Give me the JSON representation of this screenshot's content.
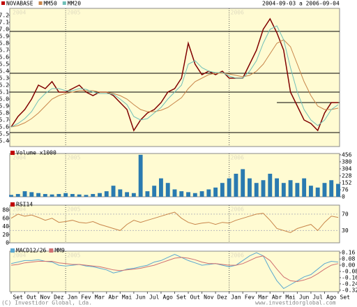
{
  "header": {
    "legend": [
      {
        "name": "NOVABASE",
        "color": "#c00000"
      },
      {
        "name": "MM50",
        "color": "#c8854a"
      },
      {
        "name": "MM20",
        "color": "#70c0b8"
      }
    ],
    "title": "2004-09-03 a 2006-09-04",
    "year_labels": [
      "2004",
      "2005",
      "2006"
    ]
  },
  "chart_data": [
    {
      "type": "line",
      "xlim": [
        0,
        24
      ],
      "x": [
        0,
        0.5,
        1,
        1.5,
        2,
        2.5,
        3,
        3.5,
        4,
        4.5,
        5,
        5.5,
        6,
        6.5,
        7,
        7.5,
        8,
        8.5,
        9,
        9.5,
        10,
        10.5,
        11,
        11.5,
        12,
        12.5,
        13,
        13.5,
        14,
        14.5,
        15,
        15.5,
        16,
        16.5,
        17,
        17.5,
        18,
        18.5,
        19,
        19.5,
        20,
        20.5,
        21,
        21.5,
        22,
        22.5,
        23,
        23.5,
        24
      ],
      "ylim": [
        5.32,
        7.3
      ],
      "yticks": [
        5.4,
        5.5,
        5.6,
        5.7,
        5.8,
        5.9,
        {
          "value": 6,
          "label": "6.0"
        },
        6.1,
        6.2,
        6.3,
        6.4,
        6.5,
        6.6,
        6.7,
        6.8,
        6.9,
        {
          "value": 7,
          "label": "7.0"
        },
        7.1,
        7.2
      ],
      "hlines": [
        6.97,
        6.37,
        6.1,
        5.52
      ],
      "partial_hline": {
        "value": 5.95,
        "from": 19.5
      },
      "series": [
        {
          "name": "NOVABASE",
          "color": "#800000",
          "values": [
            5.6,
            5.75,
            5.85,
            6.0,
            6.2,
            6.15,
            6.25,
            6.1,
            6.1,
            6.15,
            6.2,
            6.1,
            6.05,
            6.1,
            6.1,
            6.05,
            5.95,
            5.85,
            5.55,
            5.7,
            5.8,
            5.85,
            5.95,
            6.1,
            6.15,
            6.3,
            6.8,
            6.5,
            6.35,
            6.4,
            6.35,
            6.4,
            6.3,
            6.3,
            6.3,
            6.5,
            6.7,
            7.0,
            7.15,
            6.95,
            6.7,
            6.1,
            5.9,
            5.7,
            5.65,
            5.55,
            5.8,
            5.95,
            5.95
          ]
        },
        {
          "name": "MM50",
          "color": "#c8854a",
          "values": [
            5.6,
            5.62,
            5.66,
            5.72,
            5.8,
            5.9,
            6.0,
            6.05,
            6.08,
            6.1,
            6.12,
            6.12,
            6.12,
            6.1,
            6.1,
            6.08,
            6.05,
            6.0,
            5.92,
            5.85,
            5.82,
            5.82,
            5.84,
            5.88,
            5.95,
            6.02,
            6.15,
            6.25,
            6.3,
            6.35,
            6.37,
            6.37,
            6.36,
            6.34,
            6.32,
            6.34,
            6.4,
            6.5,
            6.65,
            6.8,
            6.85,
            6.75,
            6.5,
            6.25,
            6.05,
            5.9,
            5.85,
            5.85,
            5.87
          ]
        },
        {
          "name": "MM20",
          "color": "#70c0b8",
          "values": [
            5.6,
            5.65,
            5.72,
            5.82,
            5.98,
            6.08,
            6.15,
            6.15,
            6.12,
            6.12,
            6.15,
            6.14,
            6.1,
            6.08,
            6.08,
            6.07,
            6.0,
            5.92,
            5.75,
            5.7,
            5.72,
            5.8,
            5.88,
            6.0,
            6.1,
            6.2,
            6.5,
            6.55,
            6.45,
            6.4,
            6.38,
            6.38,
            6.33,
            6.3,
            6.3,
            6.4,
            6.55,
            6.8,
            7.0,
            7.05,
            6.85,
            6.45,
            6.1,
            5.85,
            5.7,
            5.62,
            5.7,
            5.85,
            5.92
          ]
        }
      ]
    },
    {
      "type": "bar",
      "title": "Volume x1000",
      "xlim": [
        0,
        24
      ],
      "x": [
        0,
        0.5,
        1,
        1.5,
        2,
        2.5,
        3,
        3.5,
        4,
        4.5,
        5,
        5.5,
        6,
        6.5,
        7,
        7.5,
        8,
        8.5,
        9,
        9.5,
        10,
        10.5,
        11,
        11.5,
        12,
        12.5,
        13,
        13.5,
        14,
        14.5,
        15,
        15.5,
        16,
        16.5,
        17,
        17.5,
        18,
        18.5,
        19,
        19.5,
        20,
        20.5,
        21,
        21.5,
        22,
        22.5,
        23,
        23.5,
        24
      ],
      "ylim": [
        0,
        470
      ],
      "yticks": [
        0,
        76,
        152,
        228,
        304,
        380,
        456
      ],
      "ytick_side": "right",
      "color": "#2a7ab0",
      "values": [
        20,
        30,
        60,
        50,
        40,
        30,
        25,
        30,
        40,
        30,
        25,
        20,
        30,
        40,
        60,
        120,
        80,
        50,
        40,
        456,
        60,
        120,
        200,
        150,
        80,
        60,
        50,
        40,
        60,
        80,
        100,
        150,
        200,
        250,
        300,
        200,
        150,
        180,
        250,
        200,
        150,
        180,
        150,
        200,
        120,
        100,
        150,
        180,
        140
      ]
    },
    {
      "type": "line",
      "title": "RSI14",
      "xlim": [
        0,
        24
      ],
      "x": [
        0,
        0.5,
        1,
        1.5,
        2,
        2.5,
        3,
        3.5,
        4,
        4.5,
        5,
        5.5,
        6,
        6.5,
        7,
        7.5,
        8,
        8.5,
        9,
        9.5,
        10,
        10.5,
        11,
        11.5,
        12,
        12.5,
        13,
        13.5,
        14,
        14.5,
        15,
        15.5,
        16,
        16.5,
        17,
        17.5,
        18,
        18.5,
        19,
        19.5,
        20,
        20.5,
        21,
        21.5,
        22,
        22.5,
        23,
        23.5,
        24
      ],
      "ylim": [
        0,
        92
      ],
      "yticks": [
        0,
        20,
        40,
        60,
        80
      ],
      "y2ticks": [
        30,
        70
      ],
      "series": [
        {
          "name": "RSI14",
          "color": "#c8854a",
          "values": [
            60,
            70,
            65,
            68,
            62,
            55,
            60,
            50,
            52,
            55,
            50,
            48,
            52,
            45,
            40,
            35,
            30,
            45,
            55,
            50,
            55,
            60,
            65,
            70,
            75,
            60,
            50,
            45,
            48,
            50,
            45,
            50,
            48,
            55,
            60,
            65,
            70,
            72,
            55,
            35,
            30,
            25,
            35,
            40,
            45,
            30,
            50,
            65,
            62
          ]
        }
      ]
    },
    {
      "type": "line",
      "xlim": [
        0,
        24
      ],
      "x": [
        0,
        0.5,
        1,
        1.5,
        2,
        2.5,
        3,
        3.5,
        4,
        4.5,
        5,
        5.5,
        6,
        6.5,
        7,
        7.5,
        8,
        8.5,
        9,
        9.5,
        10,
        10.5,
        11,
        11.5,
        12,
        12.5,
        13,
        13.5,
        14,
        14.5,
        15,
        15.5,
        16,
        16.5,
        17,
        17.5,
        18,
        18.5,
        19,
        19.5,
        20,
        20.5,
        21,
        21.5,
        22,
        22.5,
        23,
        23.5,
        24
      ],
      "ylim": [
        -0.34,
        0.18
      ],
      "yticks": [
        0.16,
        0.08,
        {
          "value": 0,
          "label": "0.00"
        },
        -0.08,
        -0.16,
        -0.24,
        -0.32
      ],
      "ytick_side": "right",
      "series": [
        {
          "name": "MACD12/26",
          "color": "#5aa8d0",
          "values": [
            0.02,
            0.04,
            0.06,
            0.06,
            0.07,
            0.05,
            0.04,
            0.0,
            -0.01,
            0.0,
            0.01,
            -0.01,
            -0.02,
            -0.04,
            -0.06,
            -0.1,
            -0.08,
            -0.05,
            -0.04,
            -0.02,
            0.0,
            0.04,
            0.06,
            0.1,
            0.14,
            0.1,
            0.06,
            0.03,
            0.0,
            0.01,
            0.02,
            0.0,
            -0.02,
            0.0,
            0.06,
            0.12,
            0.16,
            0.12,
            -0.05,
            -0.2,
            -0.3,
            -0.25,
            -0.2,
            -0.15,
            -0.12,
            -0.05,
            0.02,
            0.05,
            0.04
          ]
        },
        {
          "name": "MM9",
          "color": "#d07070",
          "values": [
            0.0,
            0.01,
            0.03,
            0.04,
            0.05,
            0.05,
            0.05,
            0.03,
            0.02,
            0.01,
            0.01,
            0.0,
            -0.01,
            -0.02,
            -0.04,
            -0.06,
            -0.07,
            -0.06,
            -0.05,
            -0.04,
            -0.02,
            0.0,
            0.03,
            0.06,
            0.09,
            0.1,
            0.09,
            0.07,
            0.04,
            0.02,
            0.02,
            0.01,
            0.0,
            0.0,
            0.02,
            0.06,
            0.1,
            0.12,
            0.06,
            -0.05,
            -0.15,
            -0.2,
            -0.21,
            -0.19,
            -0.16,
            -0.11,
            -0.05,
            0.0,
            0.02
          ]
        }
      ],
      "xtick_labels": [
        "Set",
        "Out",
        "Nov",
        "Dez",
        "Jan",
        "Fev",
        "Mar",
        "Abr",
        "Mai",
        "Jun",
        "Jul",
        "Ago",
        "Set",
        "Out",
        "Nov",
        "Dez",
        "Jan",
        "Fev",
        "Mar",
        "Abr",
        "Mai",
        "Jun",
        "Jul",
        "Ago",
        "Set"
      ]
    }
  ],
  "footer": {
    "left": "(C) Investidor Global, Lda.",
    "right": "www.investidorglobal.com"
  }
}
